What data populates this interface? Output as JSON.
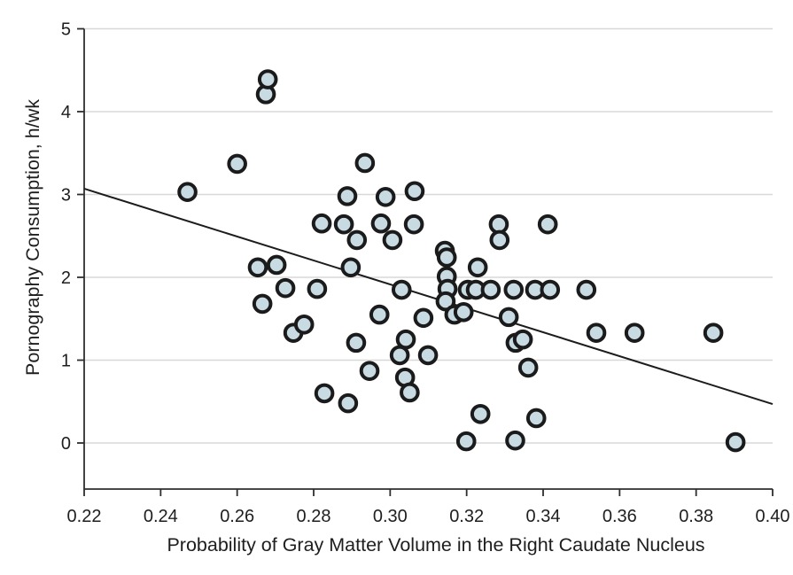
{
  "chart_data": {
    "type": "scatter",
    "title": "",
    "xlabel": "Probability of Gray Matter Volume in the Right Caudate Nucleus",
    "ylabel": "Pornography Consumption, h/wk",
    "xlim": [
      0.22,
      0.4
    ],
    "ylim": [
      0,
      5
    ],
    "grid": "horizontal-only",
    "legend": "none",
    "xticks": [
      {
        "value": 0.22,
        "label": "0.22"
      },
      {
        "value": 0.24,
        "label": "0.24"
      },
      {
        "value": 0.26,
        "label": "0.26"
      },
      {
        "value": 0.28,
        "label": "0.28"
      },
      {
        "value": 0.3,
        "label": "0.30"
      },
      {
        "value": 0.32,
        "label": "0.32"
      },
      {
        "value": 0.34,
        "label": "0.34"
      },
      {
        "value": 0.36,
        "label": "0.36"
      },
      {
        "value": 0.38,
        "label": "0.38"
      },
      {
        "value": 0.4,
        "label": "0.40"
      }
    ],
    "yticks": [
      {
        "value": 0,
        "label": "0"
      },
      {
        "value": 1,
        "label": "1"
      },
      {
        "value": 2,
        "label": "2"
      },
      {
        "value": 3,
        "label": "3"
      },
      {
        "value": 4,
        "label": "4"
      },
      {
        "value": 5,
        "label": "5"
      }
    ],
    "points": [
      [
        0.247,
        3.03
      ],
      [
        0.26,
        3.37
      ],
      [
        0.2675,
        4.21
      ],
      [
        0.268,
        4.39
      ],
      [
        0.2888,
        2.98
      ],
      [
        0.2934,
        3.38
      ],
      [
        0.2988,
        2.97
      ],
      [
        0.3064,
        3.04
      ],
      [
        0.2821,
        2.65
      ],
      [
        0.2879,
        2.64
      ],
      [
        0.2976,
        2.65
      ],
      [
        0.3062,
        2.64
      ],
      [
        0.3284,
        2.64
      ],
      [
        0.3412,
        2.64
      ],
      [
        0.2913,
        2.45
      ],
      [
        0.3006,
        2.45
      ],
      [
        0.3286,
        2.45
      ],
      [
        0.2654,
        2.12
      ],
      [
        0.2703,
        2.15
      ],
      [
        0.2897,
        2.12
      ],
      [
        0.3143,
        2.32
      ],
      [
        0.3148,
        2.24
      ],
      [
        0.3148,
        2.01
      ],
      [
        0.3229,
        2.12
      ],
      [
        0.2726,
        1.87
      ],
      [
        0.2809,
        1.86
      ],
      [
        0.303,
        1.85
      ],
      [
        0.315,
        1.86
      ],
      [
        0.3203,
        1.85
      ],
      [
        0.3224,
        1.85
      ],
      [
        0.3263,
        1.85
      ],
      [
        0.3323,
        1.85
      ],
      [
        0.3379,
        1.85
      ],
      [
        0.3418,
        1.85
      ],
      [
        0.3513,
        1.85
      ],
      [
        0.2666,
        1.68
      ],
      [
        0.3145,
        1.71
      ],
      [
        0.2972,
        1.55
      ],
      [
        0.3087,
        1.51
      ],
      [
        0.3168,
        1.55
      ],
      [
        0.3192,
        1.58
      ],
      [
        0.331,
        1.52
      ],
      [
        0.2747,
        1.33
      ],
      [
        0.2775,
        1.43
      ],
      [
        0.2911,
        1.21
      ],
      [
        0.3041,
        1.25
      ],
      [
        0.3328,
        1.21
      ],
      [
        0.3347,
        1.25
      ],
      [
        0.3539,
        1.33
      ],
      [
        0.3639,
        1.33
      ],
      [
        0.3845,
        1.33
      ],
      [
        0.3025,
        1.06
      ],
      [
        0.3099,
        1.06
      ],
      [
        0.2946,
        0.87
      ],
      [
        0.3039,
        0.79
      ],
      [
        0.3361,
        0.91
      ],
      [
        0.2828,
        0.6
      ],
      [
        0.3051,
        0.61
      ],
      [
        0.289,
        0.48
      ],
      [
        0.3236,
        0.35
      ],
      [
        0.3382,
        0.3
      ],
      [
        0.3199,
        0.02
      ],
      [
        0.3327,
        0.03
      ],
      [
        0.3903,
        0.01
      ]
    ],
    "trend_line": {
      "x1": 0.22,
      "y1": 3.07,
      "x2": 0.4,
      "y2": 0.47
    },
    "colors": {
      "marker_fill": "#c8dbe3",
      "marker_stroke": "#1b1b1b",
      "trend_line": "#1c1c1c",
      "grid": "#d8d8d8",
      "axis": "#2e2e2e",
      "text": "#1e1e1e",
      "background": "#ffffff"
    }
  }
}
